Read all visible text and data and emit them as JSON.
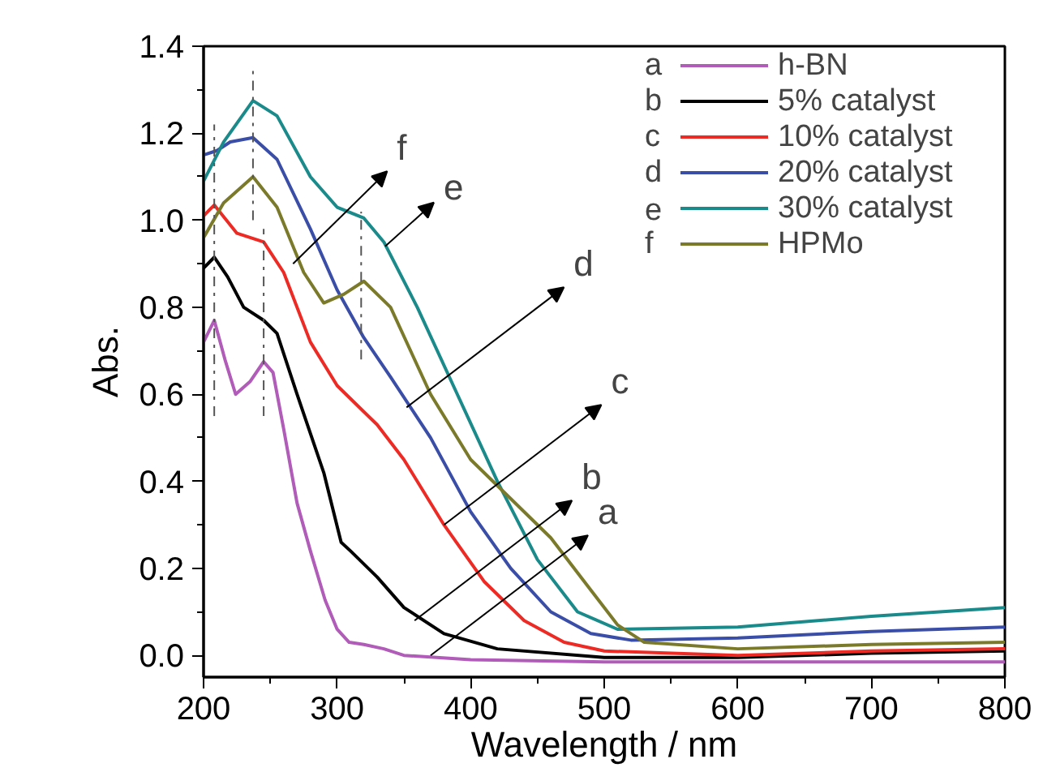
{
  "chart_data": {
    "type": "line",
    "xlabel": "Wavelength / nm",
    "ylabel": "Abs.",
    "xlim": [
      200,
      800
    ],
    "ylim": [
      -0.05,
      1.4
    ],
    "xticks": [
      200,
      300,
      400,
      500,
      600,
      700,
      800
    ],
    "yticks": [
      {
        "value": 0,
        "label": "0.0"
      },
      {
        "value": 0.2,
        "label": "0.2"
      },
      {
        "value": 0.4,
        "label": "0.4"
      },
      {
        "value": 0.6,
        "label": "0.6"
      },
      {
        "value": 0.8,
        "label": "0.8"
      },
      {
        "value": 1.0,
        "label": "1.0"
      },
      {
        "value": 1.2,
        "label": "1.2"
      },
      {
        "value": 1.4,
        "label": "1.4"
      }
    ],
    "grid": false,
    "legend": "top right",
    "line_style": "solid",
    "series": [
      {
        "name": "h-BN",
        "color": "#b05cb8",
        "x": [
          200,
          208,
          216,
          224,
          235,
          245,
          252,
          260,
          270,
          280,
          291,
          300,
          309,
          320,
          335,
          350,
          400,
          500,
          600,
          700,
          800
        ],
        "values": [
          0.72,
          0.77,
          0.68,
          0.6,
          0.63,
          0.675,
          0.65,
          0.52,
          0.35,
          0.24,
          0.127,
          0.06,
          0.03,
          0.025,
          0.015,
          0.0,
          -0.01,
          -0.015,
          -0.015,
          -0.015,
          -0.015
        ]
      },
      {
        "name": "5% catalyst",
        "color": "#000000",
        "x": [
          200,
          208,
          218,
          230,
          245,
          255,
          270,
          290,
          303,
          310,
          330,
          350,
          380,
          420,
          500,
          600,
          700,
          800
        ],
        "values": [
          0.89,
          0.915,
          0.87,
          0.8,
          0.77,
          0.74,
          0.6,
          0.42,
          0.26,
          0.24,
          0.18,
          0.11,
          0.05,
          0.015,
          -0.005,
          -0.005,
          0.005,
          0.01
        ]
      },
      {
        "name": "10% catalyst",
        "color": "#ee2a24",
        "x": [
          200,
          208,
          225,
          245,
          260,
          280,
          300,
          320,
          330,
          350,
          380,
          410,
          440,
          470,
          500,
          600,
          700,
          800
        ],
        "values": [
          1.01,
          1.035,
          0.97,
          0.95,
          0.88,
          0.72,
          0.62,
          0.56,
          0.53,
          0.45,
          0.3,
          0.17,
          0.08,
          0.03,
          0.01,
          0.0,
          0.01,
          0.015
        ]
      },
      {
        "name": "20% catalyst",
        "color": "#3a4ea8",
        "x": [
          200,
          210,
          220,
          237,
          255,
          280,
          300,
          320,
          340,
          370,
          400,
          430,
          460,
          490,
          520,
          600,
          700,
          800
        ],
        "values": [
          1.15,
          1.16,
          1.18,
          1.19,
          1.14,
          0.98,
          0.84,
          0.73,
          0.64,
          0.5,
          0.33,
          0.2,
          0.1,
          0.05,
          0.035,
          0.04,
          0.055,
          0.065
        ]
      },
      {
        "name": "30% catalyst",
        "color": "#1a8a8a",
        "x": [
          200,
          215,
          237,
          255,
          280,
          300,
          320,
          335,
          360,
          390,
          420,
          450,
          480,
          510,
          600,
          700,
          800
        ],
        "values": [
          1.09,
          1.18,
          1.275,
          1.24,
          1.1,
          1.03,
          1.005,
          0.95,
          0.8,
          0.6,
          0.4,
          0.22,
          0.1,
          0.06,
          0.065,
          0.09,
          0.11
        ]
      },
      {
        "name": "HPMo",
        "color": "#7a7a2a",
        "x": [
          200,
          215,
          237,
          255,
          275,
          290,
          305,
          320,
          340,
          370,
          400,
          430,
          460,
          490,
          510,
          530,
          600,
          700,
          800
        ],
        "values": [
          0.96,
          1.04,
          1.1,
          1.03,
          0.88,
          0.81,
          0.83,
          0.86,
          0.8,
          0.6,
          0.45,
          0.36,
          0.27,
          0.15,
          0.07,
          0.03,
          0.015,
          0.025,
          0.03
        ]
      },
      {
        "type": "line",
        "color": "#555555",
        "line_style": "dashed",
        "x": [
          208,
          208
        ],
        "values": [
          0.55,
          1.22
        ]
      },
      {
        "type": "line",
        "color": "#555555",
        "line_style": "dashed",
        "x": [
          237,
          237
        ],
        "values": [
          1.0,
          1.35
        ]
      },
      {
        "type": "line",
        "color": "#555555",
        "line_style": "dashed",
        "x": [
          245,
          245
        ],
        "values": [
          0.55,
          0.98
        ]
      },
      {
        "type": "line",
        "color": "#555555",
        "line_style": "dashed",
        "x": [
          318,
          318
        ],
        "values": [
          0.68,
          1.02
        ]
      }
    ],
    "annotations": [
      {
        "text": "a",
        "x": 370,
        "y": 0.0
      },
      {
        "text": "b",
        "x": 358,
        "y": 0.08
      },
      {
        "text": "c",
        "x": 380,
        "y": 0.3
      },
      {
        "text": "d",
        "x": 352,
        "y": 0.57
      },
      {
        "text": "e",
        "x": 336,
        "y": 0.94
      },
      {
        "text": "f",
        "x": 267,
        "y": 0.9
      }
    ]
  }
}
